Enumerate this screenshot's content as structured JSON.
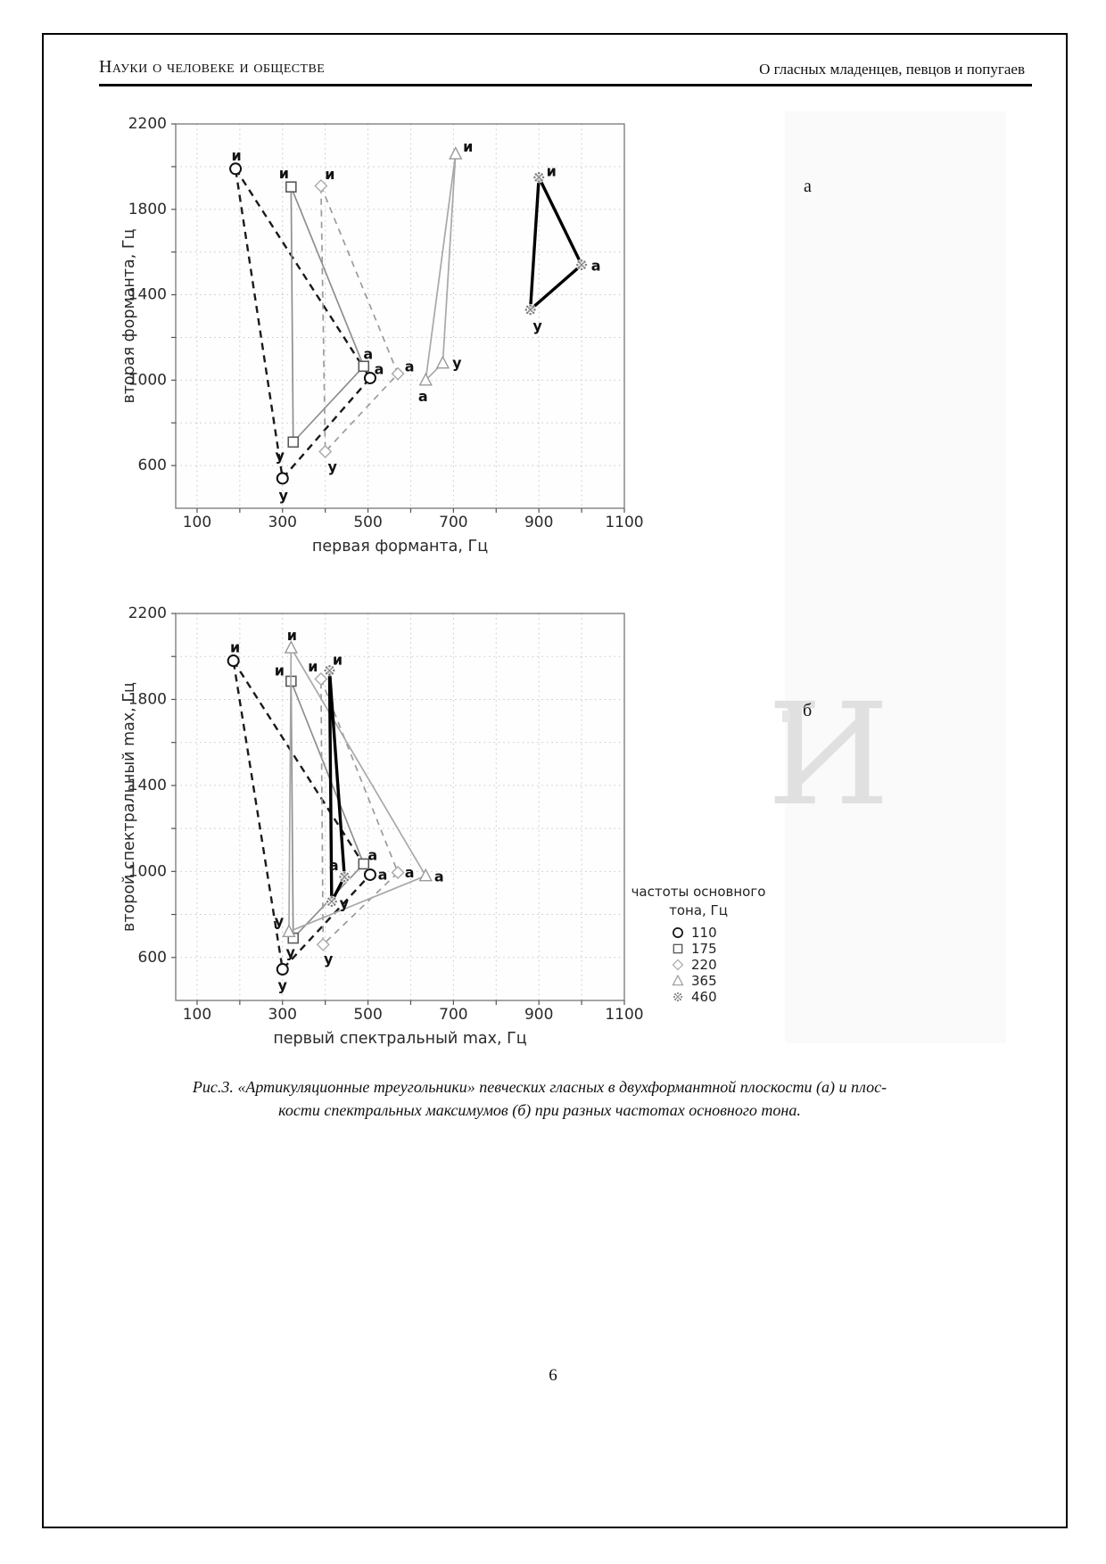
{
  "header": {
    "left": "Науки о человеке и обществе",
    "right": "О гласных младенцев, певцов и попугаев"
  },
  "panel_labels": {
    "a": "а",
    "b": "б"
  },
  "watermark": "И",
  "caption": {
    "line1": "Рис.3. «Артикуляционные треугольники» певческих гласных в двухформантной плоскости (а) и плос-",
    "line2": "кости спектральных максимумов (б) при разных частотах основного тона."
  },
  "page_number": "6",
  "legend": {
    "title_line1": "частоты основного",
    "title_line2": "тона, Гц",
    "entries": [
      {
        "marker": "circle",
        "label": "110"
      },
      {
        "marker": "square",
        "label": "175"
      },
      {
        "marker": "diamond",
        "label": "220"
      },
      {
        "marker": "triangle",
        "label": "365"
      },
      {
        "marker": "star",
        "label": "460"
      }
    ]
  },
  "chart_data": [
    {
      "id": "a",
      "type": "line",
      "title": "",
      "xlabel": "первая форманта, Гц",
      "ylabel": "вторая форманта, Гц",
      "xlim": [
        50,
        1100
      ],
      "ylim": [
        400,
        2200
      ],
      "xticks": [
        100,
        300,
        500,
        700,
        900,
        1100
      ],
      "yticks": [
        600,
        1000,
        1400,
        1800,
        2200
      ],
      "grid": "dotted",
      "legend_position": "none",
      "series": [
        {
          "name": "110",
          "marker": "circle",
          "line": "dashed-black",
          "color": "#1a1a1a",
          "points": [
            {
              "label": "и",
              "x": 190,
              "y": 1990,
              "dx": 1,
              "dy": -15
            },
            {
              "label": "а",
              "x": 505,
              "y": 1010,
              "dx": 10,
              "dy": -10
            },
            {
              "label": "у",
              "x": 300,
              "y": 540,
              "dx": 1,
              "dy": 19
            }
          ]
        },
        {
          "name": "175",
          "marker": "square",
          "line": "solid-gray",
          "color": "#8f8f8f",
          "points": [
            {
              "label": "и",
              "x": 320,
              "y": 1905,
              "dx": -8,
              "dy": -15
            },
            {
              "label": "а",
              "x": 490,
              "y": 1065,
              "dx": 5,
              "dy": -14
            },
            {
              "label": "у",
              "x": 325,
              "y": 710,
              "dx": -15,
              "dy": 15
            }
          ]
        },
        {
          "name": "220",
          "marker": "diamond",
          "line": "dashed-gray",
          "color": "#9b9b9b",
          "points": [
            {
              "label": "и",
              "x": 390,
              "y": 1910,
              "dx": 10,
              "dy": -13
            },
            {
              "label": "а",
              "x": 570,
              "y": 1030,
              "dx": 13,
              "dy": -8
            },
            {
              "label": "у",
              "x": 400,
              "y": 665,
              "dx": 8,
              "dy": 17
            }
          ]
        },
        {
          "name": "365",
          "marker": "triangle",
          "line": "solid-lightgray",
          "color": "#a8a8a8",
          "points": [
            {
              "label": "и",
              "x": 705,
              "y": 2060,
              "dx": 14,
              "dy": -8
            },
            {
              "label": "а",
              "x": 635,
              "y": 1000,
              "dx": -3,
              "dy": 18
            },
            {
              "label": "у",
              "x": 675,
              "y": 1080,
              "dx": 16,
              "dy": 0
            }
          ]
        },
        {
          "name": "460",
          "marker": "star",
          "line": "solid-black",
          "color": "#000000",
          "points": [
            {
              "label": "и",
              "x": 900,
              "y": 1950,
              "dx": 14,
              "dy": -7
            },
            {
              "label": "а",
              "x": 1000,
              "y": 1540,
              "dx": 16,
              "dy": 1
            },
            {
              "label": "у",
              "x": 880,
              "y": 1330,
              "dx": 8,
              "dy": 18
            }
          ]
        }
      ]
    },
    {
      "id": "b",
      "type": "line",
      "title": "",
      "xlabel": "первый спектральный max, Гц",
      "ylabel": "второй спектральный max, Гц",
      "xlim": [
        50,
        1100
      ],
      "ylim": [
        400,
        2200
      ],
      "xticks": [
        100,
        300,
        500,
        700,
        900,
        1100
      ],
      "yticks": [
        600,
        1000,
        1400,
        1800,
        2200
      ],
      "grid": "dotted",
      "legend_position": "right",
      "series": [
        {
          "name": "110",
          "marker": "circle",
          "line": "dashed-black",
          "color": "#1a1a1a",
          "points": [
            {
              "label": "и",
              "x": 185,
              "y": 1980,
              "dx": 2,
              "dy": -15
            },
            {
              "label": "а",
              "x": 505,
              "y": 985,
              "dx": 14,
              "dy": 0
            },
            {
              "label": "у",
              "x": 300,
              "y": 545,
              "dx": 0,
              "dy": 18
            }
          ]
        },
        {
          "name": "175",
          "marker": "square",
          "line": "solid-gray",
          "color": "#8f8f8f",
          "points": [
            {
              "label": "и",
              "x": 320,
              "y": 1885,
              "dx": -13,
              "dy": -12
            },
            {
              "label": "а",
              "x": 490,
              "y": 1035,
              "dx": 10,
              "dy": -10
            },
            {
              "label": "у",
              "x": 325,
              "y": 690,
              "dx": -3,
              "dy": 16
            }
          ]
        },
        {
          "name": "220",
          "marker": "diamond",
          "line": "dashed-gray",
          "color": "#9b9b9b",
          "points": [
            {
              "label": "и",
              "x": 390,
              "y": 1895,
              "dx": -9,
              "dy": -14
            },
            {
              "label": "а",
              "x": 570,
              "y": 995,
              "dx": 13,
              "dy": 0
            },
            {
              "label": "у",
              "x": 395,
              "y": 660,
              "dx": 6,
              "dy": 16
            }
          ]
        },
        {
          "name": "365",
          "marker": "triangle",
          "line": "solid-lightgray",
          "color": "#a8a8a8",
          "points": [
            {
              "label": "и",
              "x": 320,
              "y": 2040,
              "dx": 1,
              "dy": -14
            },
            {
              "label": "а",
              "x": 635,
              "y": 980,
              "dx": 15,
              "dy": 1
            },
            {
              "label": "у",
              "x": 315,
              "y": 720,
              "dx": -11,
              "dy": -12
            }
          ]
        },
        {
          "name": "460",
          "marker": "star",
          "line": "solid-black",
          "color": "#000000",
          "points": [
            {
              "label": "и",
              "x": 410,
              "y": 1935,
              "dx": 9,
              "dy": -12
            },
            {
              "label": "а",
              "x": 445,
              "y": 975,
              "dx": -12,
              "dy": -13
            },
            {
              "label": "у",
              "x": 415,
              "y": 860,
              "dx": 14,
              "dy": 2
            }
          ]
        }
      ]
    }
  ]
}
